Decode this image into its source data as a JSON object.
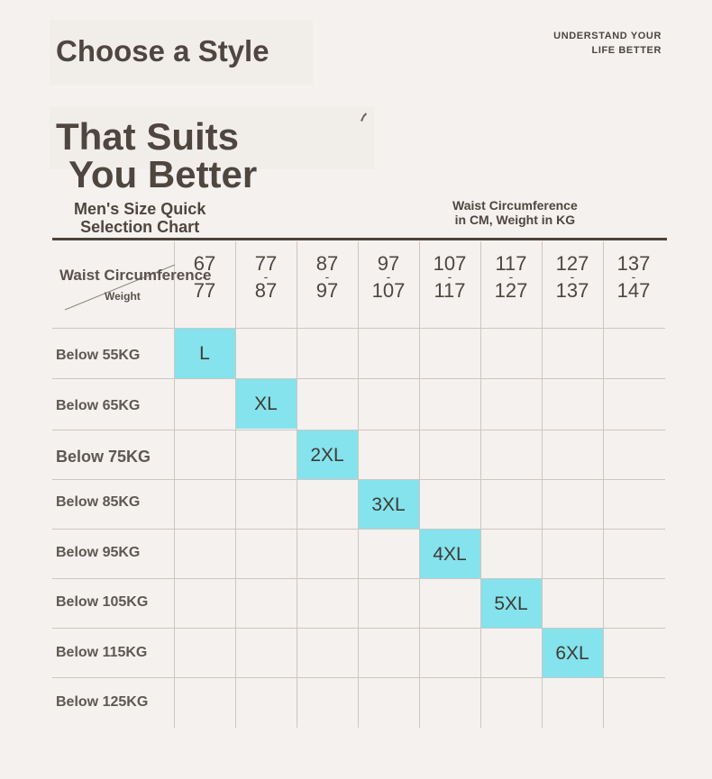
{
  "header": {
    "title_line_1": "Choose a Style",
    "title_line_2a": "That Suits",
    "title_line_2b": "You Better",
    "brand_line_1": "UNDERSTAND YOUR",
    "brand_line_2": "LIFE BETTER"
  },
  "subheader": {
    "left_line_1": "Men's Size Quick",
    "left_line_2": "Selection Chart",
    "right_line_1": "Waist Circumference",
    "right_line_2": "in CM, Weight in KG"
  },
  "table": {
    "corner_top": "Waist Circumference",
    "corner_bottom": "Weight",
    "columns": [
      {
        "from": "67",
        "sep": "-",
        "to": "77"
      },
      {
        "from": "77",
        "sep": "-",
        "to": "87"
      },
      {
        "from": "87",
        "sep": "-",
        "to": "97"
      },
      {
        "from": "97",
        "sep": "-",
        "to": "107"
      },
      {
        "from": "107",
        "sep": "-",
        "to": "117"
      },
      {
        "from": "117",
        "sep": "-",
        "to": "127"
      },
      {
        "from": "127",
        "sep": "-",
        "to": "137"
      },
      {
        "from": "137",
        "sep": "-",
        "to": "147"
      }
    ],
    "rows": [
      {
        "label": "Below 55KG",
        "size": "L"
      },
      {
        "label": "Below 65KG",
        "size": "XL"
      },
      {
        "label": "Below 75KG",
        "size": "2XL"
      },
      {
        "label": "Below 85KG",
        "size": "3XL"
      },
      {
        "label": "Below 95KG",
        "size": "4XL"
      },
      {
        "label": "Below 105KG",
        "size": "5XL"
      },
      {
        "label": "Below 115KG",
        "size": "6XL"
      },
      {
        "label": "Below 125KG",
        "size": ""
      }
    ]
  },
  "colors": {
    "highlight": "#84e3ec",
    "text": "#4e463f",
    "background": "#f4f1ee"
  }
}
